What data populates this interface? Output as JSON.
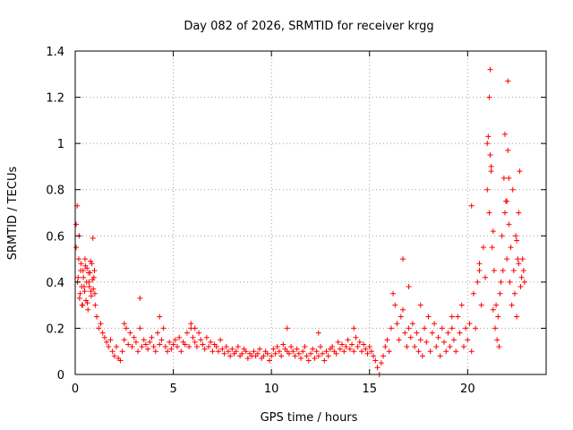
{
  "chart_data": {
    "type": "scatter",
    "title": "Day 082 of 2026, SRMTID for receiver krgg",
    "xlabel": "GPS time / hours",
    "ylabel": "SRMTID / TECUs",
    "xlim": [
      0,
      24
    ],
    "ylim": [
      0,
      1.4
    ],
    "x_ticks": [
      0,
      5,
      10,
      15,
      20
    ],
    "x_tick_labels": [
      "0",
      "5",
      "10",
      "15",
      "20"
    ],
    "y_ticks": [
      0,
      0.2,
      0.4,
      0.6,
      0.8,
      1,
      1.2,
      1.4
    ],
    "y_tick_labels": [
      "0",
      "0.2",
      "0.4",
      "0.6",
      "0.8",
      "1",
      "1.2",
      "1.4"
    ],
    "grid": true,
    "marker": "+",
    "color": "#ff0000",
    "series": [
      {
        "name": "SRMTID",
        "x": [
          0.05,
          0.1,
          0.15,
          0.2,
          0.25,
          0.3,
          0.35,
          0.4,
          0.45,
          0.5,
          0.55,
          0.6,
          0.65,
          0.7,
          0.75,
          0.8,
          0.85,
          0.9,
          0.95,
          1.0,
          0.05,
          0.12,
          0.18,
          0.22,
          0.28,
          0.33,
          0.38,
          0.42,
          0.48,
          0.52,
          0.58,
          0.62,
          0.68,
          0.72,
          0.78,
          0.82,
          0.88,
          0.92,
          0.98,
          1.02,
          1.1,
          1.2,
          1.3,
          1.4,
          1.5,
          1.6,
          1.7,
          1.8,
          1.9,
          2.0,
          2.1,
          2.2,
          2.3,
          2.4,
          2.5,
          2.6,
          2.7,
          2.8,
          2.9,
          3.0,
          3.1,
          3.2,
          3.3,
          3.4,
          3.5,
          3.6,
          3.7,
          3.8,
          3.9,
          4.0,
          4.1,
          4.2,
          4.3,
          4.4,
          4.5,
          4.6,
          4.7,
          4.8,
          4.9,
          5.0,
          5.1,
          5.2,
          5.3,
          5.4,
          5.5,
          5.6,
          5.7,
          5.8,
          5.9,
          6.0,
          6.1,
          6.2,
          6.3,
          6.4,
          6.5,
          6.6,
          6.7,
          6.8,
          6.9,
          7.0,
          7.1,
          7.2,
          7.3,
          7.4,
          7.5,
          7.6,
          7.7,
          7.8,
          7.9,
          8.0,
          8.1,
          8.2,
          8.3,
          8.4,
          8.5,
          8.6,
          8.7,
          8.8,
          8.9,
          9.0,
          9.1,
          9.2,
          9.3,
          9.4,
          9.5,
          9.6,
          9.7,
          9.8,
          9.9,
          10.0,
          10.1,
          10.2,
          10.3,
          10.4,
          10.5,
          10.6,
          10.7,
          10.8,
          10.9,
          11.0,
          11.1,
          11.2,
          11.3,
          11.4,
          11.5,
          11.6,
          11.7,
          11.8,
          11.9,
          12.0,
          12.1,
          12.2,
          12.3,
          12.4,
          12.5,
          12.6,
          12.7,
          12.8,
          12.9,
          13.0,
          13.1,
          13.2,
          13.3,
          13.4,
          13.5,
          13.6,
          13.7,
          13.8,
          13.9,
          14.0,
          14.1,
          14.2,
          14.3,
          14.4,
          14.5,
          14.6,
          14.7,
          14.8,
          14.9,
          15.0,
          15.1,
          15.2,
          15.3,
          15.4,
          15.5,
          15.6,
          15.7,
          15.8,
          15.9,
          16.0,
          16.1,
          16.2,
          16.3,
          16.4,
          16.5,
          16.6,
          16.7,
          16.8,
          16.9,
          17.0,
          17.1,
          17.2,
          17.3,
          17.4,
          17.5,
          17.6,
          17.7,
          17.8,
          17.9,
          18.0,
          18.1,
          18.2,
          18.3,
          18.4,
          18.5,
          18.6,
          18.7,
          18.8,
          18.9,
          19.0,
          19.1,
          19.2,
          19.3,
          19.4,
          19.5,
          19.6,
          19.7,
          19.8,
          19.9,
          20.0,
          20.1,
          20.2,
          20.3,
          20.4,
          20.5,
          20.6,
          20.7,
          20.8,
          20.9,
          21.0,
          21.05,
          21.1,
          21.15,
          21.2,
          21.25,
          21.3,
          21.35,
          21.4,
          21.45,
          21.5,
          21.55,
          21.6,
          21.65,
          21.7,
          21.75,
          21.8,
          21.85,
          21.9,
          21.95,
          22.0,
          22.05,
          22.1,
          22.15,
          22.2,
          22.25,
          22.3,
          22.35,
          22.4,
          22.45,
          22.5,
          22.55,
          22.6,
          22.65,
          22.7,
          22.75,
          22.8,
          22.85,
          22.9,
          2.5,
          3.3,
          4.3,
          5.9,
          6.1,
          10.8,
          12.4,
          14.2,
          16.7,
          17.0,
          17.6,
          19.2,
          20.2,
          20.6,
          21.0,
          21.1,
          21.15,
          21.2,
          21.3,
          21.9,
          22.0,
          22.05,
          22.1,
          22.5,
          22.6
        ],
        "y": [
          0.55,
          0.73,
          0.42,
          0.6,
          0.35,
          0.48,
          0.3,
          0.45,
          0.38,
          0.5,
          0.32,
          0.46,
          0.28,
          0.4,
          0.44,
          0.36,
          0.48,
          0.59,
          0.42,
          0.35,
          0.65,
          0.4,
          0.5,
          0.33,
          0.45,
          0.38,
          0.3,
          0.42,
          0.36,
          0.47,
          0.4,
          0.31,
          0.44,
          0.38,
          0.49,
          0.34,
          0.41,
          0.37,
          0.45,
          0.3,
          0.25,
          0.2,
          0.22,
          0.18,
          0.16,
          0.14,
          0.12,
          0.15,
          0.1,
          0.08,
          0.12,
          0.07,
          0.06,
          0.1,
          0.15,
          0.2,
          0.13,
          0.18,
          0.12,
          0.16,
          0.14,
          0.1,
          0.2,
          0.12,
          0.15,
          0.13,
          0.11,
          0.14,
          0.16,
          0.12,
          0.1,
          0.18,
          0.13,
          0.15,
          0.2,
          0.12,
          0.1,
          0.14,
          0.11,
          0.13,
          0.15,
          0.12,
          0.16,
          0.1,
          0.14,
          0.13,
          0.18,
          0.12,
          0.2,
          0.16,
          0.14,
          0.12,
          0.18,
          0.15,
          0.13,
          0.11,
          0.16,
          0.12,
          0.14,
          0.1,
          0.13,
          0.12,
          0.1,
          0.15,
          0.11,
          0.09,
          0.12,
          0.1,
          0.08,
          0.11,
          0.09,
          0.1,
          0.12,
          0.08,
          0.09,
          0.11,
          0.1,
          0.07,
          0.09,
          0.08,
          0.1,
          0.08,
          0.09,
          0.11,
          0.07,
          0.08,
          0.1,
          0.09,
          0.06,
          0.08,
          0.11,
          0.09,
          0.12,
          0.1,
          0.08,
          0.13,
          0.11,
          0.1,
          0.09,
          0.12,
          0.1,
          0.08,
          0.11,
          0.09,
          0.07,
          0.1,
          0.12,
          0.08,
          0.06,
          0.09,
          0.11,
          0.07,
          0.1,
          0.08,
          0.12,
          0.09,
          0.06,
          0.1,
          0.08,
          0.11,
          0.12,
          0.1,
          0.09,
          0.14,
          0.11,
          0.13,
          0.1,
          0.12,
          0.15,
          0.11,
          0.13,
          0.1,
          0.16,
          0.12,
          0.14,
          0.1,
          0.13,
          0.11,
          0.09,
          0.12,
          0.1,
          0.08,
          0.06,
          0.03,
          0.0,
          0.05,
          0.08,
          0.12,
          0.15,
          0.1,
          0.2,
          0.35,
          0.3,
          0.22,
          0.15,
          0.25,
          0.28,
          0.18,
          0.12,
          0.2,
          0.16,
          0.22,
          0.12,
          0.18,
          0.1,
          0.15,
          0.08,
          0.2,
          0.14,
          0.25,
          0.1,
          0.18,
          0.22,
          0.12,
          0.16,
          0.08,
          0.2,
          0.14,
          0.1,
          0.18,
          0.12,
          0.2,
          0.15,
          0.1,
          0.25,
          0.18,
          0.3,
          0.12,
          0.2,
          0.15,
          0.22,
          0.1,
          0.35,
          0.2,
          0.4,
          0.48,
          0.3,
          0.55,
          0.42,
          0.8,
          1.03,
          0.7,
          1.32,
          0.9,
          0.55,
          0.28,
          0.45,
          0.2,
          0.3,
          0.15,
          0.25,
          0.12,
          0.35,
          0.4,
          0.6,
          0.45,
          0.85,
          1.04,
          0.75,
          0.5,
          0.97,
          0.65,
          0.4,
          0.55,
          0.3,
          0.8,
          0.45,
          0.35,
          0.6,
          0.25,
          0.5,
          0.7,
          0.88,
          0.38,
          0.42,
          0.5,
          0.45,
          0.4,
          0.22,
          0.33,
          0.25,
          0.22,
          0.2,
          0.2,
          0.18,
          0.2,
          0.5,
          0.38,
          0.3,
          0.25,
          0.73,
          0.45,
          1.0,
          1.2,
          0.95,
          0.88,
          0.62,
          0.7,
          0.75,
          1.27,
          0.85,
          0.58,
          0.48
        ]
      }
    ]
  }
}
